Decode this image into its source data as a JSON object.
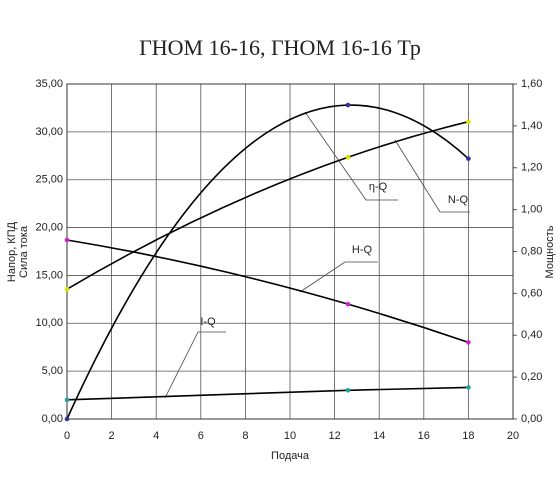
{
  "chart_data": {
    "type": "line",
    "title": "ГНОМ 16-16, ГНОМ 16-16 Тр",
    "x_label": "Подача",
    "y_label": [
      "Напор, КПД",
      "Сила тока"
    ],
    "y2_label": "Мощность",
    "x": [
      0,
      12.6,
      18
    ],
    "series": [
      {
        "name": "H-Q",
        "color": "#d020d0",
        "values": [
          18.7,
          12.0,
          8.0
        ]
      },
      {
        "name": "η-Q",
        "color": "#3030a0",
        "values": [
          0,
          32.8,
          27.2
        ]
      },
      {
        "name": "N-Q",
        "color": "#e0e000",
        "axis": "y2",
        "values": [
          0.62,
          1.25,
          1.42
        ]
      },
      {
        "name": "I-Q",
        "color": "#20a0a0",
        "values": [
          2.0,
          3.0,
          3.3
        ]
      }
    ],
    "line_color": "#000000",
    "grid": true,
    "xlim": [
      0,
      20
    ],
    "xticks": [
      0,
      2,
      4,
      6,
      8,
      10,
      12,
      14,
      16,
      18,
      20
    ],
    "ylim": [
      0,
      35
    ],
    "yticks": [
      {
        "value": 0,
        "label": "0,00"
      },
      {
        "value": 5,
        "label": "5,00"
      },
      {
        "value": 10,
        "label": "10,00"
      },
      {
        "value": 15,
        "label": "15,00"
      },
      {
        "value": 20,
        "label": "20,00"
      },
      {
        "value": 25,
        "label": "25,00"
      },
      {
        "value": 30,
        "label": "30,00"
      },
      {
        "value": 35,
        "label": "35,00"
      }
    ],
    "y2lim": [
      0,
      1.6
    ],
    "y2ticks": [
      {
        "value": 0,
        "label": "0,00"
      },
      {
        "value": 0.2,
        "label": "0,20"
      },
      {
        "value": 0.4,
        "label": "0,40"
      },
      {
        "value": 0.6,
        "label": "0,60"
      },
      {
        "value": 0.8,
        "label": "0,80"
      },
      {
        "value": 1.0,
        "label": "1,00"
      },
      {
        "value": 1.2,
        "label": "1,20"
      },
      {
        "value": 1.4,
        "label": "1,40"
      },
      {
        "value": 1.6,
        "label": "1,60"
      }
    ]
  }
}
